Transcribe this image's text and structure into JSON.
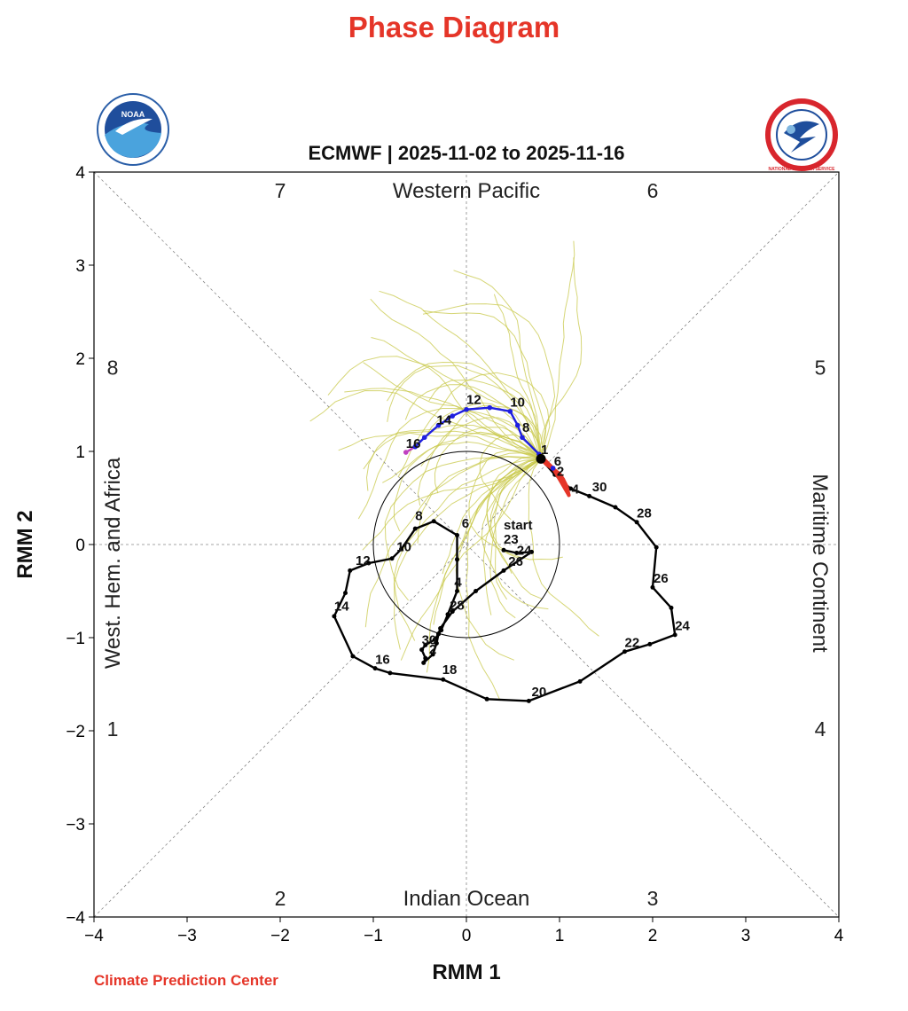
{
  "page": {
    "title": "Phase Diagram",
    "footer": "Climate Prediction Center"
  },
  "logos": {
    "left": {
      "text": "NOAA",
      "icon": "noaa-logo-icon"
    },
    "right": {
      "text": "NATIONAL WEATHER SERVICE",
      "icon": "nws-logo-icon"
    }
  },
  "colors": {
    "title": "#e53528",
    "observed": "#000000",
    "forecast_early": "#e53528",
    "forecast_mid": "#1f1fe0",
    "forecast_late": "#c040c0",
    "ensemble": "#c8c84a",
    "guide": "#888888"
  },
  "chart_data": {
    "type": "line",
    "title": "ECMWF | 2025-11-02 to 2025-11-16",
    "xlabel": "RMM 1",
    "ylabel": "RMM 2",
    "xlim": [
      -4,
      4
    ],
    "ylim": [
      -4,
      4
    ],
    "x_ticks": [
      "−4",
      "−3",
      "−2",
      "−1",
      "0",
      "1",
      "2",
      "3",
      "4"
    ],
    "y_ticks": [
      "−4",
      "−3",
      "−2",
      "−1",
      "0",
      "1",
      "2",
      "3",
      "4"
    ],
    "region_labels": [
      {
        "text": "Western Pacific",
        "side": "top"
      },
      {
        "text": "Indian Ocean",
        "side": "bottom"
      },
      {
        "text": "West. Hem. and Africa",
        "side": "left"
      },
      {
        "text": "Maritime Continent",
        "side": "right"
      }
    ],
    "phase_numbers": [
      {
        "text": "7",
        "x": -2,
        "y": 3.8
      },
      {
        "text": "6",
        "x": 2,
        "y": 3.8
      },
      {
        "text": "8",
        "x": -3.8,
        "y": 1.9
      },
      {
        "text": "5",
        "x": 3.8,
        "y": 1.9
      },
      {
        "text": "1",
        "x": -3.8,
        "y": -1.98
      },
      {
        "text": "4",
        "x": 3.8,
        "y": -1.98
      },
      {
        "text": "2",
        "x": -2,
        "y": -3.8
      },
      {
        "text": "3",
        "x": 2,
        "y": -3.8
      }
    ],
    "unit_circle_radius": 1,
    "observed": {
      "name": "",
      "points": [
        [
          0.4,
          -0.06
        ],
        [
          0.54,
          -0.09
        ],
        [
          0.7,
          -0.08
        ],
        [
          0.4,
          -0.28
        ],
        [
          0.1,
          -0.5
        ],
        [
          -0.15,
          -0.72
        ],
        [
          -0.28,
          -0.9
        ],
        [
          -0.3,
          -0.96
        ],
        [
          -0.34,
          -1.02
        ],
        [
          -0.44,
          -1.08
        ],
        [
          -0.48,
          -1.13
        ],
        [
          -0.44,
          -1.22
        ],
        [
          -0.46,
          -1.27
        ],
        [
          -0.36,
          -1.18
        ],
        [
          -0.32,
          -1.06
        ],
        [
          -0.3,
          -0.96
        ],
        [
          -0.27,
          -0.92
        ],
        [
          -0.2,
          -0.75
        ],
        [
          -0.1,
          -0.5
        ],
        [
          -0.1,
          -0.16
        ],
        [
          -0.1,
          0.1
        ],
        [
          -0.35,
          0.25
        ],
        [
          -0.55,
          0.17
        ],
        [
          -0.7,
          -0.05
        ],
        [
          -0.8,
          -0.15
        ],
        [
          -1.05,
          -0.2
        ],
        [
          -1.25,
          -0.28
        ],
        [
          -1.3,
          -0.52
        ],
        [
          -1.42,
          -0.77
        ],
        [
          -1.22,
          -1.2
        ],
        [
          -0.98,
          -1.33
        ],
        [
          -0.82,
          -1.38
        ],
        [
          -0.25,
          -1.45
        ],
        [
          0.22,
          -1.66
        ],
        [
          0.67,
          -1.68
        ],
        [
          1.22,
          -1.47
        ],
        [
          1.7,
          -1.15
        ],
        [
          1.97,
          -1.07
        ],
        [
          2.24,
          -0.97
        ],
        [
          2.2,
          -0.68
        ],
        [
          2.0,
          -0.46
        ],
        [
          2.04,
          -0.03
        ],
        [
          1.83,
          0.24
        ],
        [
          1.6,
          0.4
        ],
        [
          1.32,
          0.52
        ],
        [
          1.12,
          0.6
        ],
        [
          0.95,
          0.75
        ],
        [
          0.8,
          0.92
        ]
      ],
      "labels": [
        {
          "text": "start",
          "x": 0.4,
          "y": 0.16
        },
        {
          "text": "23",
          "x": 0.4,
          "y": 0.01
        },
        {
          "text": "24",
          "x": 0.54,
          "y": -0.11
        },
        {
          "text": "26",
          "x": 0.45,
          "y": -0.23
        },
        {
          "text": "28",
          "x": -0.18,
          "y": -0.7
        },
        {
          "text": "30",
          "x": -0.48,
          "y": -1.07
        },
        {
          "text": "2",
          "x": -0.4,
          "y": -1.17
        },
        {
          "text": "4",
          "x": -0.13,
          "y": -0.45
        },
        {
          "text": "6",
          "x": -0.05,
          "y": 0.18
        },
        {
          "text": "8",
          "x": -0.55,
          "y": 0.26
        },
        {
          "text": "10",
          "x": -0.75,
          "y": -0.07
        },
        {
          "text": "12",
          "x": -1.19,
          "y": -0.22
        },
        {
          "text": "14",
          "x": -1.42,
          "y": -0.71
        },
        {
          "text": "16",
          "x": -0.98,
          "y": -1.28
        },
        {
          "text": "18",
          "x": -0.26,
          "y": -1.39
        },
        {
          "text": "20",
          "x": 0.7,
          "y": -1.63
        },
        {
          "text": "22",
          "x": 1.7,
          "y": -1.1
        },
        {
          "text": "24",
          "x": 2.24,
          "y": -0.92
        },
        {
          "text": "26",
          "x": 2.01,
          "y": -0.41
        },
        {
          "text": "28",
          "x": 1.83,
          "y": 0.29
        },
        {
          "text": "30",
          "x": 1.35,
          "y": 0.57
        },
        {
          "text": "1",
          "x": 0.8,
          "y": 0.97
        }
      ]
    },
    "forecast": {
      "points": [
        [
          0.8,
          0.92
        ],
        [
          0.86,
          0.86
        ],
        [
          0.92,
          0.82
        ],
        [
          1.0,
          0.76
        ],
        [
          1.04,
          0.7
        ],
        [
          1.08,
          0.62
        ],
        [
          1.1,
          0.53
        ],
        [
          0.93,
          0.82
        ],
        [
          0.78,
          0.97
        ],
        [
          0.6,
          1.15
        ],
        [
          0.55,
          1.28
        ],
        [
          0.47,
          1.43
        ],
        [
          0.25,
          1.47
        ],
        [
          0.0,
          1.45
        ],
        [
          -0.15,
          1.38
        ],
        [
          -0.3,
          1.28
        ],
        [
          -0.45,
          1.15
        ],
        [
          -0.55,
          1.05
        ],
        [
          -0.65,
          0.99
        ]
      ],
      "labels": [
        {
          "text": "6",
          "x": 0.94,
          "y": 0.85
        },
        {
          "text": "2",
          "x": 0.97,
          "y": 0.74
        },
        {
          "text": "4",
          "x": 1.13,
          "y": 0.55
        },
        {
          "text": "8",
          "x": 0.6,
          "y": 1.21
        },
        {
          "text": "10",
          "x": 0.47,
          "y": 1.48
        },
        {
          "text": "12",
          "x": 0.0,
          "y": 1.51
        },
        {
          "text": "14",
          "x": -0.32,
          "y": 1.29
        },
        {
          "text": "16",
          "x": -0.65,
          "y": 1.04
        }
      ]
    }
  }
}
